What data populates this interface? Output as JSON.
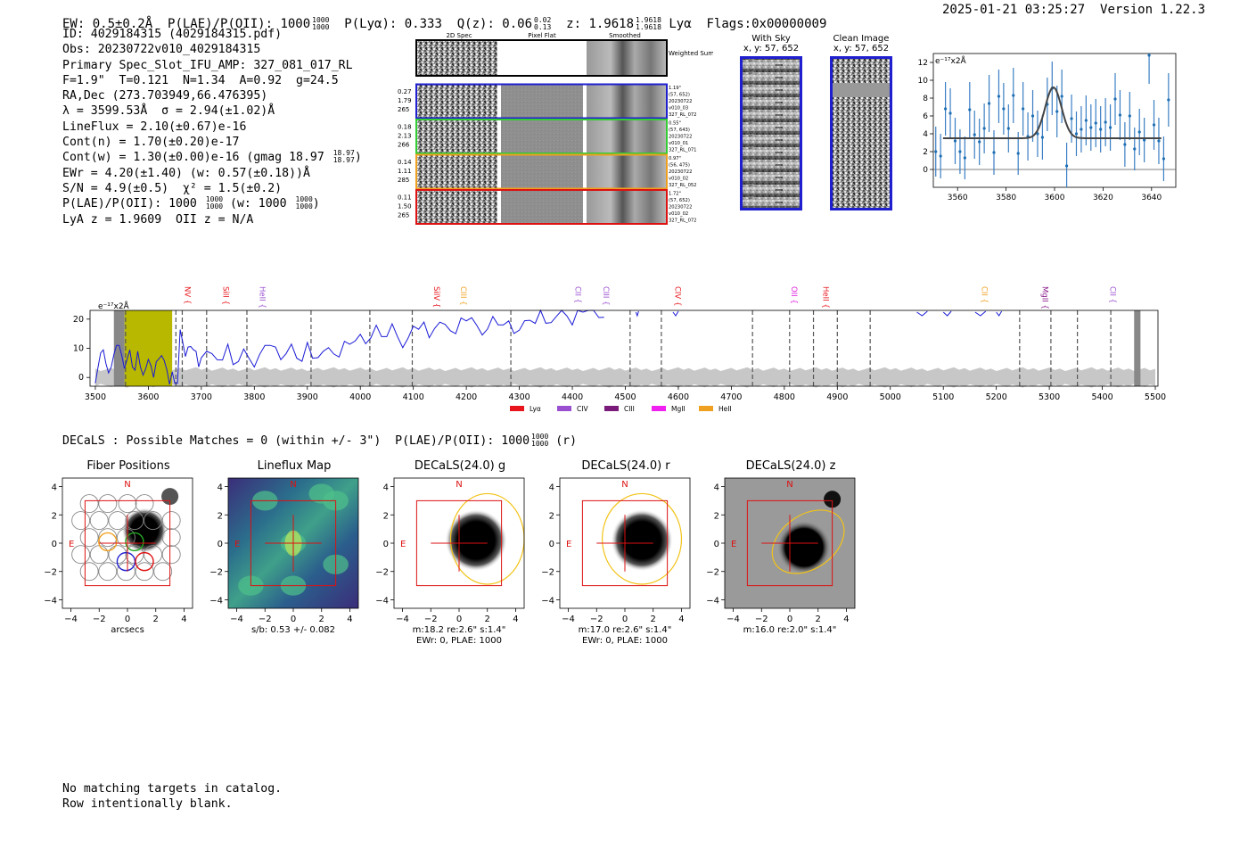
{
  "header": {
    "ew": "EW: 0.5±0.2Å",
    "plae_label": "P(LAE)/P(OII): 1000",
    "plae_hi": "1000",
    "plae_lo": "1000",
    "plya": "P(Lyα): 0.333",
    "qz_label": "Q(z): 0.06",
    "qz_hi": "0.02",
    "qz_lo": "0.13",
    "z_label": "z: 1.9618",
    "z_hi": "1.9618",
    "z_lo": "1.9618",
    "line": "Lyα",
    "flags": "Flags:0x00000009",
    "timestamp": "2025-01-21 03:25:27",
    "version": "Version 1.22.3"
  },
  "info": {
    "id": "ID: 4029184315 (4029184315.pdf)",
    "obs": "Obs: 20230722v010_4029184315",
    "primary": "Primary Spec_Slot_IFU_AMP: 327_081_017_RL",
    "params": "F=1.9\"  T=0.121  N=1.34  A=0.92  g=24.5",
    "radec": "RA,Dec (273.703949,66.476395)",
    "lambda": "λ = 3599.53Å  σ = 2.94(±1.02)Å",
    "lineflux": "LineFlux = 2.10(±0.67)e-16",
    "contn": "Cont(n) = 1.70(±0.20)e-17",
    "contw": "Cont(w) = 1.30(±0.00)e-16 (gmag 18.97",
    "contw_hi": "18.97",
    "contw_lo": "18.97",
    "ewr": "EWr = 4.20(±1.40) (w: 0.57(±0.18))Å",
    "sn": "S/N = 4.9(±0.5)  χ² = 1.5(±0.2)",
    "plae": "P(LAE)/P(OII): 1000",
    "plae_hi": "1000",
    "plae_lo": "1000",
    "plae_w": "(w: 1000",
    "plae_w_hi": "1000",
    "plae_w_lo": "1000",
    "lyaz": "LyA z = 1.9609  OII z = N/A"
  },
  "cutouts": {
    "col_2d": "2D Spec",
    "col_flat": "Pixel Flat",
    "col_smooth": "Smoothed",
    "weighted": "Weighted Sum",
    "rows": [
      {
        "a": "0.27",
        "b": "1.79",
        "c": "265",
        "d1": "1.19\"",
        "d2": "(57, 652)",
        "d3": "20230722",
        "d4": "v010_03",
        "d5": "327_RL_072",
        "color": "#1f1fd0"
      },
      {
        "a": "0.18",
        "b": "2.13",
        "c": "266",
        "d1": "0.55\"",
        "d2": "(57, 643)",
        "d3": "20230722",
        "d4": "v010_01",
        "d5": "327_RL_071",
        "color": "#33cc33"
      },
      {
        "a": "0.14",
        "b": "1.11",
        "c": "285",
        "d1": "0.97\"",
        "d2": "(56, 475)",
        "d3": "20230722",
        "d4": "v010_02",
        "d5": "327_RL_052",
        "color": "#f0a020"
      },
      {
        "a": "0.11",
        "b": "1.50",
        "c": "265",
        "d1": "1.72\"",
        "d2": "(57, 652)",
        "d3": "20230722",
        "d4": "v010_02",
        "d5": "327_RL_072",
        "color": "#dd1111"
      }
    ]
  },
  "skyimg": {
    "with_sky": "With Sky",
    "with_sky_xy": "x, y: 57, 652",
    "clean": "Clean Image",
    "clean_xy": "x, y: 57, 652"
  },
  "linefit": {
    "unit": "e⁻¹⁷x2Å",
    "xticks": [
      "3560",
      "3580",
      "3600",
      "3620",
      "3640"
    ],
    "yticks": [
      "0",
      "2",
      "4",
      "6",
      "8",
      "10",
      "12"
    ]
  },
  "chart_data": [
    {
      "type": "line",
      "title": "Line fit",
      "xlabel": "",
      "ylabel": "e-17x2Å",
      "xlim": [
        3550,
        3650
      ],
      "ylim": [
        -2,
        13
      ],
      "fit_center": 3599.5,
      "fit_sigma": 2.94,
      "fit_continuum": 3.5,
      "fit_peak": 9.2,
      "x": [
        3551,
        3553,
        3555,
        3557,
        3559,
        3561,
        3563,
        3565,
        3567,
        3569,
        3571,
        3573,
        3575,
        3577,
        3579,
        3581,
        3583,
        3585,
        3587,
        3589,
        3591,
        3593,
        3595,
        3597,
        3599,
        3601,
        3603,
        3605,
        3607,
        3609,
        3611,
        3613,
        3615,
        3617,
        3619,
        3621,
        3623,
        3625,
        3627,
        3629,
        3631,
        3633,
        3635,
        3637,
        3639,
        3641,
        3643,
        3645,
        3647
      ],
      "y": [
        2.0,
        1.5,
        6.8,
        6.3,
        3.2,
        2.0,
        1.3,
        6.7,
        3.9,
        3.1,
        4.6,
        7.4,
        1.9,
        8.2,
        6.8,
        4.6,
        8.3,
        1.8,
        6.8,
        3.7,
        6.0,
        4.0,
        3.6,
        7.3,
        9.1,
        6.5,
        8.2,
        0.4,
        5.7,
        4.0,
        4.5,
        5.5,
        4.7,
        5.2,
        4.5,
        5.3,
        4.7,
        7.9,
        6.1,
        2.8,
        6.0,
        2.3,
        4.2,
        3.3,
        12.8,
        5.0,
        3.2,
        1.2,
        7.8
      ],
      "err": [
        2.8,
        2.5,
        3.0,
        2.8,
        2.6,
        2.5,
        2.4,
        3.1,
        2.7,
        2.6,
        2.8,
        3.2,
        2.5,
        3.0,
        2.9,
        2.7,
        3.1,
        2.4,
        3.0,
        2.7,
        2.9,
        2.6,
        2.5,
        3.0,
        3.0,
        2.9,
        3.0,
        2.6,
        2.7,
        2.5,
        2.6,
        2.8,
        2.6,
        2.7,
        2.6,
        2.7,
        2.6,
        2.9,
        2.8,
        2.5,
        2.7,
        2.4,
        2.6,
        2.5,
        3.2,
        2.8,
        2.6,
        2.5,
        3.0
      ]
    },
    {
      "type": "line",
      "title": "Full spectrum",
      "xlabel": "",
      "ylabel": "e-17x2Å",
      "xlim": [
        3490,
        5505
      ],
      "ylim": [
        -3,
        23
      ],
      "unit": "e⁻¹⁷x2Å",
      "xticks": [
        3500,
        3600,
        3700,
        3800,
        3900,
        4000,
        4100,
        4200,
        4300,
        4400,
        4500,
        4600,
        4700,
        4800,
        4900,
        5000,
        5100,
        5200,
        5300,
        5400,
        5500
      ],
      "yticks": [
        0,
        10,
        20
      ],
      "dashed_lines": [
        3557,
        3652,
        3664,
        3710,
        3786,
        3907,
        4018,
        4098,
        4284,
        4509,
        4568,
        4740,
        4810,
        4855,
        4900,
        4962,
        5244,
        5303,
        5353,
        5416
      ],
      "shaded_band": [
        3555,
        3645
      ],
      "line_labels": [
        {
          "name": "NV",
          "wave": 3664,
          "color": "#e8161c"
        },
        {
          "name": "SiII",
          "wave": 3736,
          "color": "#e8161c"
        },
        {
          "name": "HeII",
          "wave": 3805,
          "color": "#9a4fd0"
        },
        {
          "name": "SiIV",
          "wave": 4134,
          "color": "#e8161c"
        },
        {
          "name": "CIII",
          "wave": 4185,
          "color": "#f0a020"
        },
        {
          "name": "CII",
          "wave": 4401,
          "color": "#9a4fd0"
        },
        {
          "name": "CIII",
          "wave": 4454,
          "color": "#9a4fd0"
        },
        {
          "name": "CIV",
          "wave": 4589,
          "color": "#e8161c"
        },
        {
          "name": "OII",
          "wave": 4809,
          "color": "#e020e0"
        },
        {
          "name": "HeII",
          "wave": 4868,
          "color": "#e8161c"
        },
        {
          "name": "CII",
          "wave": 5168,
          "color": "#f0a020"
        },
        {
          "name": "MgII",
          "wave": 5282,
          "color": "#8a1a8a"
        },
        {
          "name": "CII",
          "wave": 5410,
          "color": "#9a4fd0"
        }
      ],
      "spectrum_x": [
        3500,
        3510,
        3520,
        3530,
        3540,
        3550,
        3560,
        3570,
        3580,
        3590,
        3600,
        3610,
        3620,
        3630,
        3640,
        3650,
        3660,
        3670,
        3680,
        3690,
        3700,
        3720,
        3740,
        3760,
        3780,
        3800,
        3820,
        3840,
        3860,
        3880,
        3900,
        3920,
        3940,
        3960,
        3980,
        4000,
        4020,
        4040,
        4060,
        4080,
        4100,
        4120,
        4140,
        4160,
        4180,
        4200,
        4220,
        4240,
        4260,
        4280,
        4300,
        4320,
        4340,
        4360,
        4380,
        4400,
        4420,
        4440,
        4460
      ],
      "spectrum_y": [
        1,
        9,
        3,
        6,
        11,
        5,
        8,
        3,
        6,
        2,
        5,
        3,
        7,
        4,
        0,
        -2,
        14,
        9,
        10,
        6,
        8,
        7,
        9,
        5,
        8,
        6,
        11,
        8,
        10,
        6,
        9,
        8,
        9,
        10,
        12,
        13,
        16,
        14,
        16,
        12,
        17,
        16,
        18,
        17,
        18,
        20,
        16,
        19,
        18,
        17,
        18,
        19,
        21,
        20,
        22,
        21,
        23,
        22,
        23
      ],
      "legend": [
        {
          "name": "Lyα",
          "color": "#e8161c"
        },
        {
          "name": "CIV",
          "color": "#9a4fd0"
        },
        {
          "name": "CIII",
          "color": "#7a1a7a"
        },
        {
          "name": "MgII",
          "color": "#f020f0"
        },
        {
          "name": "HeII",
          "color": "#f0a020"
        }
      ]
    }
  ],
  "decals": {
    "match_line": "DECaLS : Possible Matches = 0 (within +/- 3\")  P(LAE)/P(OII): 1000",
    "match_hi": "1000",
    "match_lo": "1000",
    "match_band": "(r)",
    "panels": [
      {
        "title": "Fiber Positions",
        "cap1": "arcsecs",
        "cap2": ""
      },
      {
        "title": "Lineflux Map",
        "cap1": "s/b: 0.53 +/- 0.082",
        "cap2": ""
      },
      {
        "title": "DECaLS(24.0) g",
        "cap1": "m:18.2  re:2.6\"  s:1.4\"",
        "cap2": "EWr: 0, PLAE: 1000"
      },
      {
        "title": "DECaLS(24.0) r",
        "cap1": "m:17.0  re:2.6\"  s:1.4\"",
        "cap2": "EWr: 0, PLAE: 1000"
      },
      {
        "title": "DECaLS(24.0) z",
        "cap1": "m:16.0  re:2.0\"  s:1.4\"",
        "cap2": ""
      }
    ],
    "north": "N",
    "east": "E",
    "ticks": [
      "−4",
      "−2",
      "0",
      "2",
      "4"
    ],
    "yticks": [
      "4",
      "2",
      "0",
      "−2",
      "−4"
    ]
  },
  "footer": {
    "line1": "No matching targets in catalog.",
    "line2": "Row intentionally blank."
  }
}
